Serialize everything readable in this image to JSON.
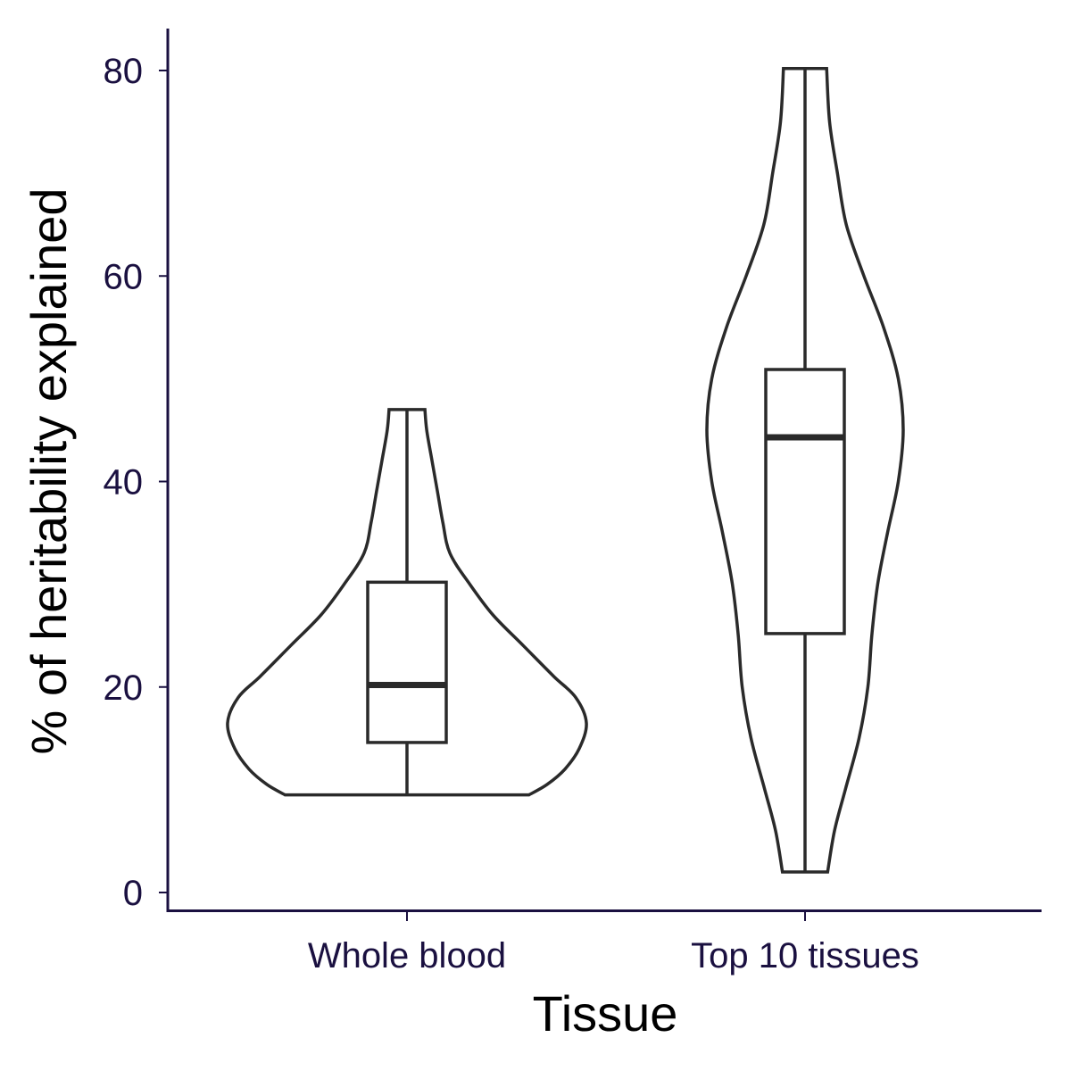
{
  "chart_data": {
    "type": "violin",
    "xlabel": "Tissue",
    "ylabel": "% of heritability explained",
    "ylim": [
      0,
      83
    ],
    "yticks": [
      0,
      20,
      40,
      60,
      80
    ],
    "grid": false,
    "categories": [
      "Whole blood",
      "Top 10 tissues"
    ],
    "series": [
      {
        "category": "Whole blood",
        "min": 9.5,
        "q1": 14.6,
        "median": 20.2,
        "q3": 30.2,
        "max": 47.0,
        "density": [
          [
            9.5,
            0.68
          ],
          [
            10.5,
            0.78
          ],
          [
            12.0,
            0.88
          ],
          [
            14.0,
            0.96
          ],
          [
            16.5,
            1.0
          ],
          [
            19.0,
            0.94
          ],
          [
            21.0,
            0.82
          ],
          [
            24.0,
            0.65
          ],
          [
            27.0,
            0.48
          ],
          [
            30.0,
            0.35
          ],
          [
            33.0,
            0.24
          ],
          [
            36.0,
            0.2
          ],
          [
            39.0,
            0.17
          ],
          [
            42.0,
            0.14
          ],
          [
            45.0,
            0.11
          ],
          [
            47.0,
            0.1
          ]
        ]
      },
      {
        "category": "Top 10 tissues",
        "min": 2.0,
        "q1": 25.2,
        "median": 44.3,
        "q3": 50.9,
        "max": 80.2,
        "density": [
          [
            2.0,
            0.23
          ],
          [
            6.0,
            0.3
          ],
          [
            10.0,
            0.41
          ],
          [
            15.0,
            0.55
          ],
          [
            20.0,
            0.64
          ],
          [
            25.0,
            0.68
          ],
          [
            30.0,
            0.74
          ],
          [
            35.0,
            0.84
          ],
          [
            40.0,
            0.95
          ],
          [
            45.0,
            1.0
          ],
          [
            50.0,
            0.95
          ],
          [
            55.0,
            0.8
          ],
          [
            60.0,
            0.6
          ],
          [
            65.0,
            0.42
          ],
          [
            70.0,
            0.33
          ],
          [
            75.0,
            0.25
          ],
          [
            80.2,
            0.22
          ]
        ]
      }
    ]
  }
}
